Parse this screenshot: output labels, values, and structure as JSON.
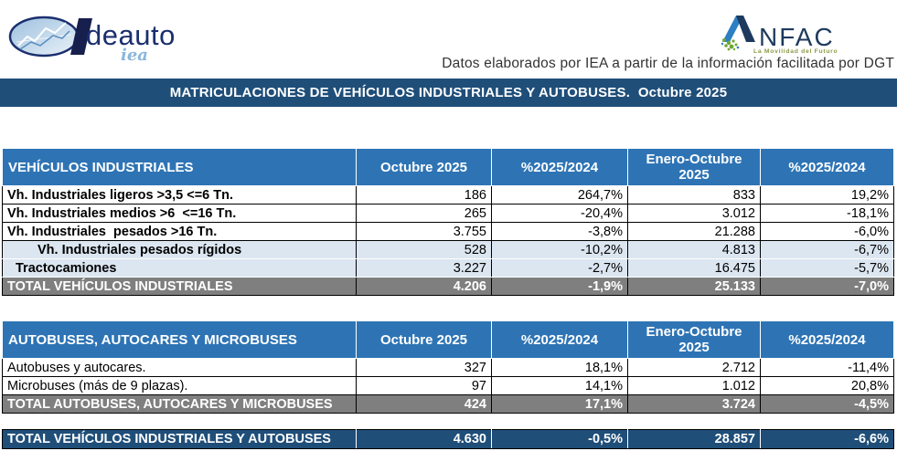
{
  "logos": {
    "ideauto": {
      "word": "deauto",
      "script": "iea"
    },
    "anfac": {
      "word": "NFAC",
      "tagline": "La Movilidad del Futuro"
    }
  },
  "source_note": "Datos elaborados por IEA a partir de la información facilitada por DGT",
  "title_bar": "MATRICULACIONES DE VEHÍCULOS INDUSTRIALES Y AUTOBUSES.  Octubre 2025",
  "colors": {
    "title_navy": "#1F4E79",
    "header_blue": "#2E74B5",
    "band_light_blue": "#DCE6F1",
    "total_gray": "#7F7F7F",
    "logo_navy": "#1b2f6e",
    "anfac_blue": "#2B7FC2",
    "anfac_green": "#6FA832"
  },
  "tables": [
    {
      "header": [
        "VEHÍCULOS INDUSTRIALES",
        "Octubre 2025",
        "%2025/2024",
        "Enero-Octubre 2025",
        "%2025/2024"
      ],
      "rows": [
        {
          "kind": "main",
          "label": "Vh. Industriales ligeros >3,5 <=6 Tn.",
          "values": [
            "186",
            "264,7%",
            "833",
            "19,2%"
          ]
        },
        {
          "kind": "main",
          "label": "Vh. Industriales medios >6  <=16 Tn.",
          "values": [
            "265",
            "-20,4%",
            "3.012",
            "-18,1%"
          ]
        },
        {
          "kind": "main",
          "label": "Vh. Industriales  pesados >16 Tn.",
          "values": [
            "3.755",
            "-3,8%",
            "21.288",
            "-6,0%"
          ]
        },
        {
          "kind": "sub-deep",
          "label": "Vh. Industriales pesados rígidos",
          "values": [
            "528",
            "-10,2%",
            "4.813",
            "-6,7%"
          ]
        },
        {
          "kind": "sub",
          "label": "Tractocamiones",
          "values": [
            "3.227",
            "-2,7%",
            "16.475",
            "-5,7%"
          ]
        },
        {
          "kind": "total",
          "label": "TOTAL VEHÍCULOS INDUSTRIALES",
          "values": [
            "4.206",
            "-1,9%",
            "25.133",
            "-7,0%"
          ]
        }
      ]
    },
    {
      "header": [
        "AUTOBUSES, AUTOCARES Y MICROBUSES",
        "Octubre 2025",
        "%2025/2024",
        "Enero-Octubre 2025",
        "%2025/2024"
      ],
      "rows": [
        {
          "kind": "plain",
          "label": "Autobuses y autocares.",
          "values": [
            "327",
            "18,1%",
            "2.712",
            "-11,4%"
          ]
        },
        {
          "kind": "plain",
          "label": "Microbuses (más de 9 plazas).",
          "values": [
            "97",
            "14,1%",
            "1.012",
            "20,8%"
          ]
        },
        {
          "kind": "total",
          "label": "TOTAL AUTOBUSES, AUTOCARES Y MICROBUSES",
          "values": [
            "424",
            "17,1%",
            "3.724",
            "-4,5%"
          ]
        }
      ]
    }
  ],
  "grand_total": {
    "kind": "grand",
    "label": "TOTAL VEHÍCULOS INDUSTRIALES Y AUTOBUSES",
    "values": [
      "4.630",
      "-0,5%",
      "28.857",
      "-6,6%"
    ]
  }
}
